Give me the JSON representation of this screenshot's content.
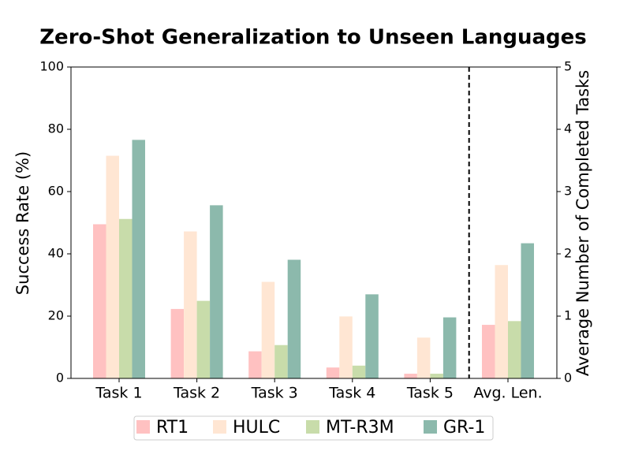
{
  "chart_data": {
    "type": "bar",
    "title": "Zero-Shot Generalization to Unseen Languages",
    "ylabel": "Success Rate (%)",
    "y2label": "Average Number of Completed Tasks",
    "categories": [
      "Task 1",
      "Task 2",
      "Task 3",
      "Task 4",
      "Task 5"
    ],
    "y2_categories": [
      "Avg. Len."
    ],
    "series": [
      {
        "name": "RT1",
        "color": "#ffc1c1",
        "values": [
          49.5,
          22.3,
          8.7,
          3.5,
          1.5
        ],
        "y2_values": [
          0.86
        ]
      },
      {
        "name": "HULC",
        "color": "#ffe6d3",
        "values": [
          71.5,
          47.2,
          31.0,
          19.9,
          13.1
        ],
        "y2_values": [
          1.82
        ]
      },
      {
        "name": "MT-R3M",
        "color": "#c8dcaa",
        "values": [
          51.2,
          24.9,
          10.7,
          4.1,
          1.5
        ],
        "y2_values": [
          0.92
        ]
      },
      {
        "name": "GR-1",
        "color": "#8cb9ac",
        "values": [
          76.6,
          55.6,
          38.1,
          27.0,
          19.6
        ],
        "y2_values": [
          2.17
        ]
      }
    ],
    "ylim": [
      0,
      100
    ],
    "yticks": [
      0,
      20,
      40,
      60,
      80,
      100
    ],
    "y2lim": [
      0,
      5
    ],
    "y2ticks": [
      0,
      1,
      2,
      3,
      4,
      5
    ],
    "legend": "bottom"
  }
}
